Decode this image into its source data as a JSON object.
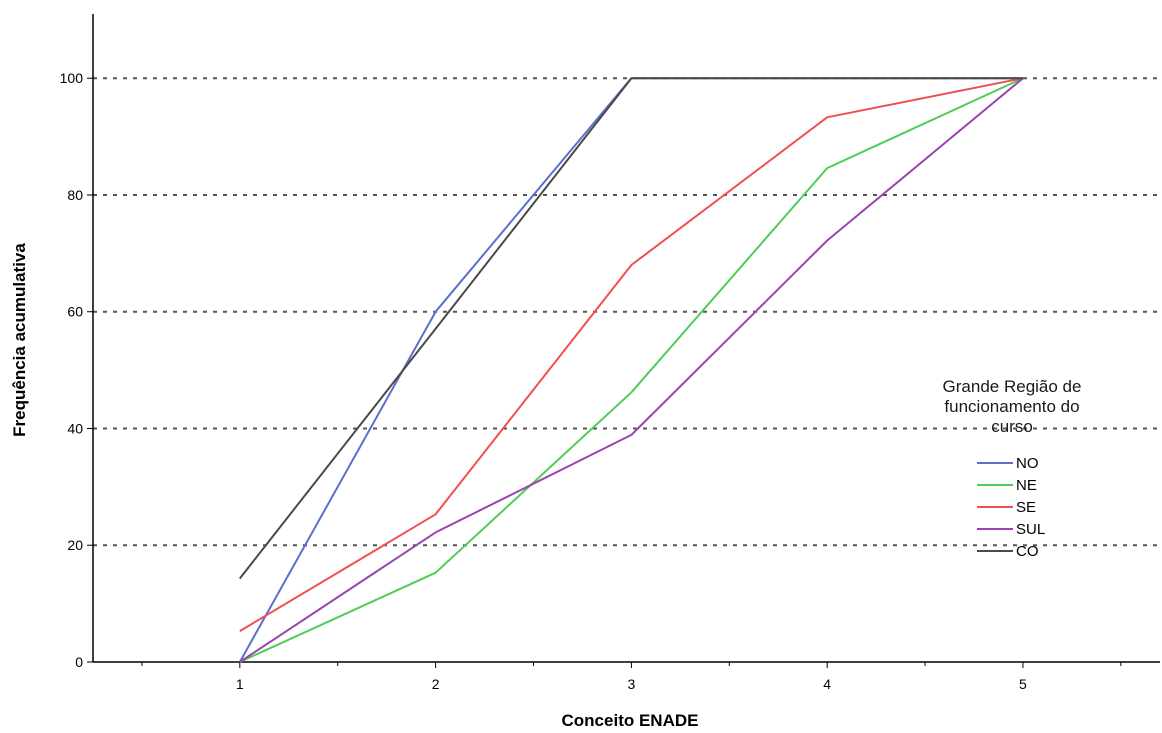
{
  "chart_data": {
    "type": "line",
    "xlabel": "Conceito ENADE",
    "ylabel": "Frequência acumulativa",
    "x": [
      1,
      2,
      3,
      4,
      5
    ],
    "xlim": [
      0.25,
      5.7
    ],
    "ylim": [
      0,
      111
    ],
    "yticks": [
      0,
      20,
      40,
      60,
      80,
      100
    ],
    "xticks": [
      1,
      2,
      3,
      4,
      5
    ],
    "grid": "horizontal dotted",
    "legend": {
      "title": "Grande Região de funcionamento do curso",
      "title_lines": [
        "Grande Região de",
        "funcionamento do",
        "curso"
      ],
      "placement": "right"
    },
    "series": [
      {
        "name": "NO",
        "color": "#5b6fcf",
        "values": [
          0,
          60,
          100,
          100,
          100
        ]
      },
      {
        "name": "NE",
        "color": "#4fcc56",
        "values": [
          0,
          15.3,
          46.2,
          84.6,
          100
        ]
      },
      {
        "name": "SE",
        "color": "#f24f4f",
        "values": [
          5.3,
          25.3,
          68,
          93.3,
          100
        ]
      },
      {
        "name": "SUL",
        "color": "#9b43b0",
        "values": [
          0,
          22.2,
          38.9,
          72.2,
          100
        ]
      },
      {
        "name": "CO",
        "color": "#4a4a4a",
        "values": [
          14.3,
          57.1,
          100,
          100,
          100
        ]
      }
    ]
  }
}
